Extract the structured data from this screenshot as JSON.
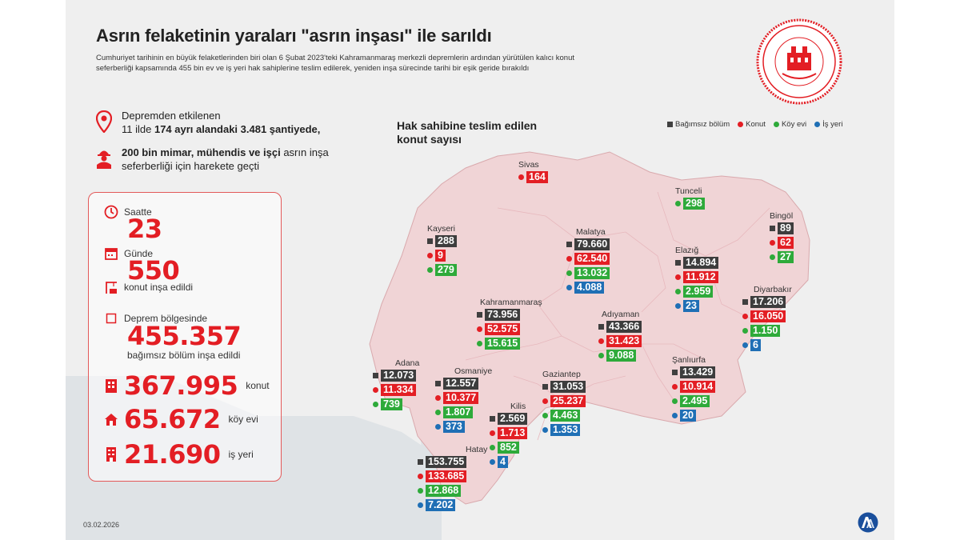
{
  "header": {
    "title": "Asrın felaketinin yaraları \"asrın inşası\" ile sarıldı",
    "description": "Cumhuriyet tarihinin en büyük felaketlerinden biri olan 6 Şubat 2023'teki Kahramanmaraş merkezli depremlerin ardından yürütülen kalıcı konut seferberliği kapsamında 455 bin ev ve iş yeri hak sahiplerine teslim edilerek, yeniden inşa sürecinde tarihi bir eşik geride bırakıldı"
  },
  "facts": {
    "line1a": "Depremden etkilenen",
    "line1b_pre": "11 ilde ",
    "line1b_bold": "174 ayrı alandaki 3.481 şantiyede,",
    "line2_bold": "200 bin mimar, mühendis ve işçi",
    "line2_rest": " asrın inşa",
    "line2b": "seferberliği için harekete geçti"
  },
  "panel": {
    "saatte_label": "Saatte",
    "saatte_value": "23",
    "gunde_label": "Günde",
    "gunde_value": "550",
    "gunde_unit": "konut inşa edildi",
    "bolge_label": "Deprem bölgesinde",
    "bolge_value": "455.357",
    "bolge_unit": "bağımsız bölüm inşa edildi",
    "konut_value": "367.995",
    "konut_unit": "konut",
    "koy_value": "65.672",
    "koy_unit": "köy evi",
    "is_value": "21.690",
    "is_unit": "iş yeri"
  },
  "map": {
    "title_line1": "Hak sahibine teslim edilen",
    "title_line2": "konut sayısı"
  },
  "legend": {
    "bagimsiz": "Bağımsız bölüm",
    "konut": "Konut",
    "koy": "Köy evi",
    "isyeri": "İş yeri"
  },
  "colors": {
    "bagimsiz": "#3d3d3d",
    "konut": "#e31e24",
    "koy": "#2eaa3a",
    "isyeri": "#1f6fb5",
    "region": "#f0d4d6"
  },
  "cities": {
    "sivas": {
      "name": "Sivas",
      "konut": "164"
    },
    "tunceli": {
      "name": "Tunceli",
      "koy": "298"
    },
    "bingol": {
      "name": "Bingöl",
      "bagimsiz": "89",
      "konut": "62",
      "koy": "27"
    },
    "kayseri": {
      "name": "Kayseri",
      "bagimsiz": "288",
      "konut": "9",
      "koy": "279"
    },
    "malatya": {
      "name": "Malatya",
      "bagimsiz": "79.660",
      "konut": "62.540",
      "koy": "13.032",
      "isyeri": "4.088"
    },
    "elazig": {
      "name": "Elazığ",
      "bagimsiz": "14.894",
      "konut": "11.912",
      "koy": "2.959",
      "isyeri": "23"
    },
    "diyarbakir": {
      "name": "Diyarbakır",
      "bagimsiz": "17.206",
      "konut": "16.050",
      "koy": "1.150",
      "isyeri": "6"
    },
    "kahramanmaras": {
      "name": "Kahramanmaraş",
      "bagimsiz": "73.956",
      "konut": "52.575",
      "koy": "15.615"
    },
    "adiyaman": {
      "name": "Adıyaman",
      "bagimsiz": "43.366",
      "konut": "31.423",
      "koy": "9.088"
    },
    "sanliurfa": {
      "name": "Şanlıurfa",
      "bagimsiz": "13.429",
      "konut": "10.914",
      "koy": "2.495",
      "isyeri": "20"
    },
    "adana": {
      "name": "Adana",
      "bagimsiz": "12.073",
      "konut": "11.334",
      "koy": "739"
    },
    "osmaniye": {
      "name": "Osmaniye",
      "bagimsiz": "12.557",
      "konut": "10.377",
      "koy": "1.807",
      "isyeri": "373"
    },
    "gaziantep": {
      "name": "Gaziantep",
      "bagimsiz": "31.053",
      "konut": "25.237",
      "koy": "4.463",
      "isyeri": "1.353"
    },
    "kilis": {
      "name": "Kilis",
      "bagimsiz": "2.569",
      "konut": "1.713",
      "koy": "852",
      "isyeri": "4"
    },
    "hatay": {
      "name": "Hatay",
      "bagimsiz": "153.755",
      "konut": "133.685",
      "koy": "12.868",
      "isyeri": "7.202"
    }
  },
  "footer": {
    "date": "03.02.2026",
    "logo": "AA"
  },
  "seal_text": "ÇEVRE, ŞEHİRCİLİK VE İKLİM DEĞİŞİKLİĞİ BAKANLIĞI"
}
